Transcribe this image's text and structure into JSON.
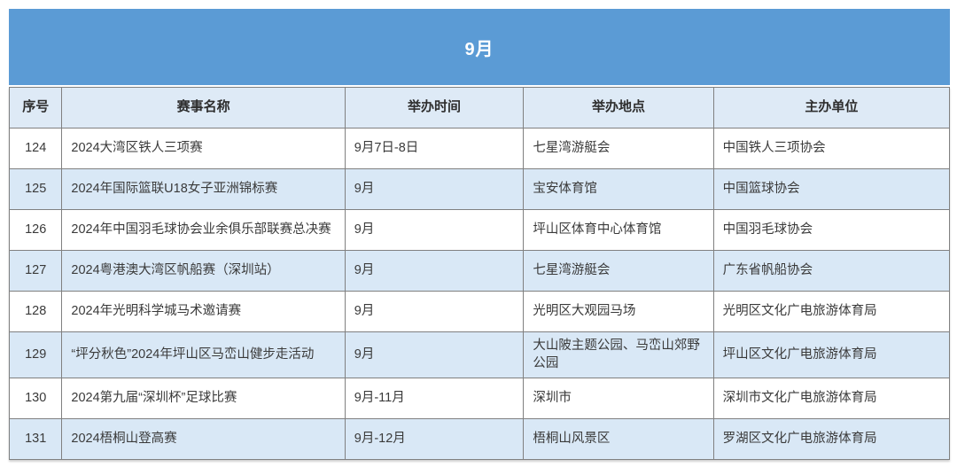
{
  "table": {
    "title": "9月",
    "columns": [
      "序号",
      "赛事名称",
      "举办时间",
      "举办地点",
      "主办单位"
    ],
    "rows": [
      {
        "no": "124",
        "name": "2024大湾区铁人三项赛",
        "time": "9月7日-8日",
        "venue": "七星湾游艇会",
        "organizer": "中国铁人三项协会"
      },
      {
        "no": "125",
        "name": "2024年国际篮联U18女子亚洲锦标赛",
        "time": "9月",
        "venue": "宝安体育馆",
        "organizer": "中国篮球协会"
      },
      {
        "no": "126",
        "name": "2024年中国羽毛球协会业余俱乐部联赛总决赛",
        "time": "9月",
        "venue": "坪山区体育中心体育馆",
        "organizer": "中国羽毛球协会"
      },
      {
        "no": "127",
        "name": "2024粤港澳大湾区帆船赛（深圳站）",
        "time": "9月",
        "venue": "七星湾游艇会",
        "organizer": "广东省帆船协会"
      },
      {
        "no": "128",
        "name": "2024年光明科学城马术邀请赛",
        "time": "9月",
        "venue": "光明区大观园马场",
        "organizer": "光明区文化广电旅游体育局"
      },
      {
        "no": "129",
        "name": "“坪分秋色”2024年坪山区马峦山健步走活动",
        "time": "9月",
        "venue": "大山陂主题公园、马峦山郊野公园",
        "organizer": "坪山区文化广电旅游体育局"
      },
      {
        "no": "130",
        "name": "2024第九届“深圳杯”足球比赛",
        "time": "9月-11月",
        "venue": "深圳市",
        "organizer": "深圳市文化广电旅游体育局"
      },
      {
        "no": "131",
        "name": "2024梧桐山登高赛",
        "time": "9月-12月",
        "venue": "梧桐山风景区",
        "organizer": "罗湖区文化广电旅游体育局"
      }
    ]
  },
  "colors": {
    "banner_bg": "#5b9bd5",
    "header_bg": "#deeaf6",
    "row_alt_bg": "#d9e8f6",
    "row_bg": "#ffffff",
    "border": "#808080",
    "text": "#3a3a3a",
    "banner_text": "#ffffff"
  }
}
